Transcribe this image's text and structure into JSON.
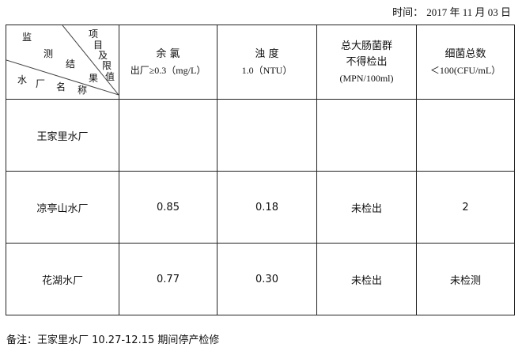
{
  "date_label": "时间：",
  "date_value": "2017 年 11 月 03 日",
  "corner": {
    "top_right": [
      "项",
      "目",
      "及",
      "限",
      "值"
    ],
    "middle": [
      "监",
      "测",
      "结",
      "果"
    ],
    "bottom": [
      "水",
      "厂",
      "名",
      "称"
    ]
  },
  "columns": [
    {
      "line1": "余 氯",
      "line2": "出厂≥0.3（mg/L）"
    },
    {
      "line1": "浊 度",
      "line2": "1.0（NTU）"
    },
    {
      "line1": "总大肠菌群",
      "line2": "不得检出",
      "line3": "(MPN/100ml)"
    },
    {
      "line1": "细菌总数",
      "line2": "＜100(CFU/mL）"
    }
  ],
  "rows": [
    {
      "name": "王家里水厂",
      "values": [
        "",
        "",
        "",
        ""
      ]
    },
    {
      "name": "凉亭山水厂",
      "values": [
        "0.85",
        "0.18",
        "未检出",
        "2"
      ]
    },
    {
      "name": "花湖水厂",
      "values": [
        "0.77",
        "0.30",
        "未检出",
        "未检测"
      ]
    }
  ],
  "note": "备注：王家里水厂 10.27-12.15 期间停产检修"
}
